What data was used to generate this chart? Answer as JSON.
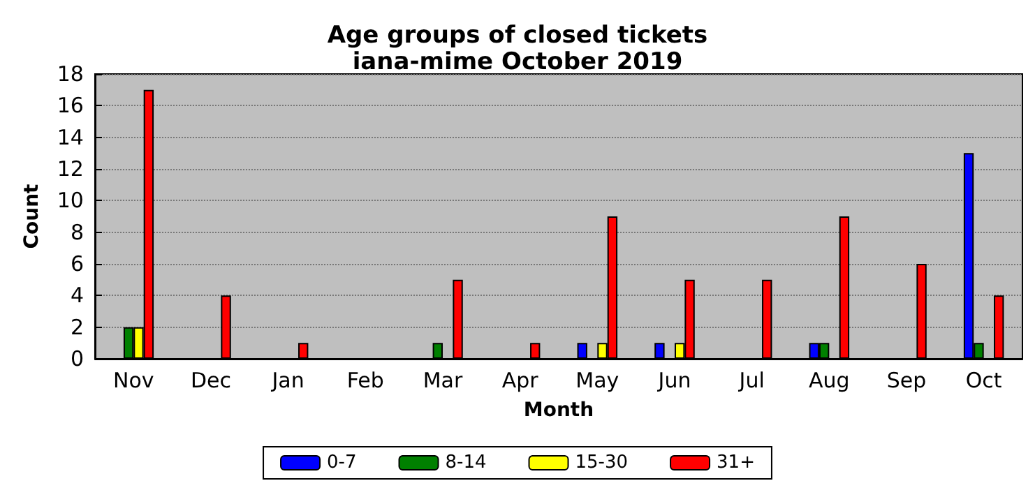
{
  "chart_data": {
    "type": "bar",
    "title": "Age groups of closed tickets",
    "subtitle": "iana-mime October 2019",
    "xlabel": "Month",
    "ylabel": "Count",
    "categories": [
      "Nov",
      "Dec",
      "Jan",
      "Feb",
      "Mar",
      "Apr",
      "May",
      "Jun",
      "Jul",
      "Aug",
      "Sep",
      "Oct"
    ],
    "series": [
      {
        "name": "0-7",
        "color": "#0000ff",
        "values": [
          0,
          0,
          0,
          0,
          0,
          0,
          1,
          1,
          0,
          1,
          0,
          13
        ]
      },
      {
        "name": "8-14",
        "color": "#008000",
        "values": [
          2,
          0,
          0,
          0,
          1,
          0,
          0,
          0,
          0,
          1,
          0,
          1
        ]
      },
      {
        "name": "15-30",
        "color": "#ffff00",
        "values": [
          2,
          0,
          0,
          0,
          0,
          0,
          1,
          1,
          0,
          0,
          0,
          0
        ]
      },
      {
        "name": "31+",
        "color": "#ff0000",
        "values": [
          17,
          4,
          1,
          0,
          5,
          1,
          9,
          5,
          5,
          9,
          6,
          4
        ]
      }
    ],
    "ylim": [
      0,
      18
    ],
    "yticks": [
      0,
      2,
      4,
      6,
      8,
      10,
      12,
      14,
      16,
      18
    ],
    "grid": "y",
    "legend": "bottom"
  }
}
